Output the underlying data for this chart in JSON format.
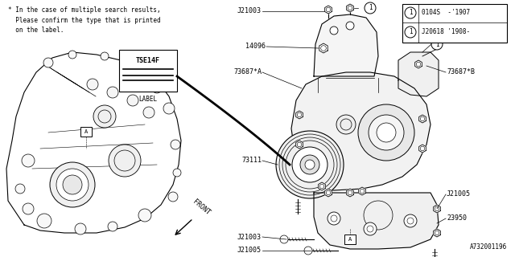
{
  "bg_color": "#ffffff",
  "line_color": "#000000",
  "text_color": "#000000",
  "note_text": "* In the case of multiple search results,\n  Please confirm the type that is printed\n  on the label.",
  "label_box_text": "TSE14F",
  "label_word": "LABEL",
  "front_text": "FRONT",
  "diagram_code": "A732001196"
}
